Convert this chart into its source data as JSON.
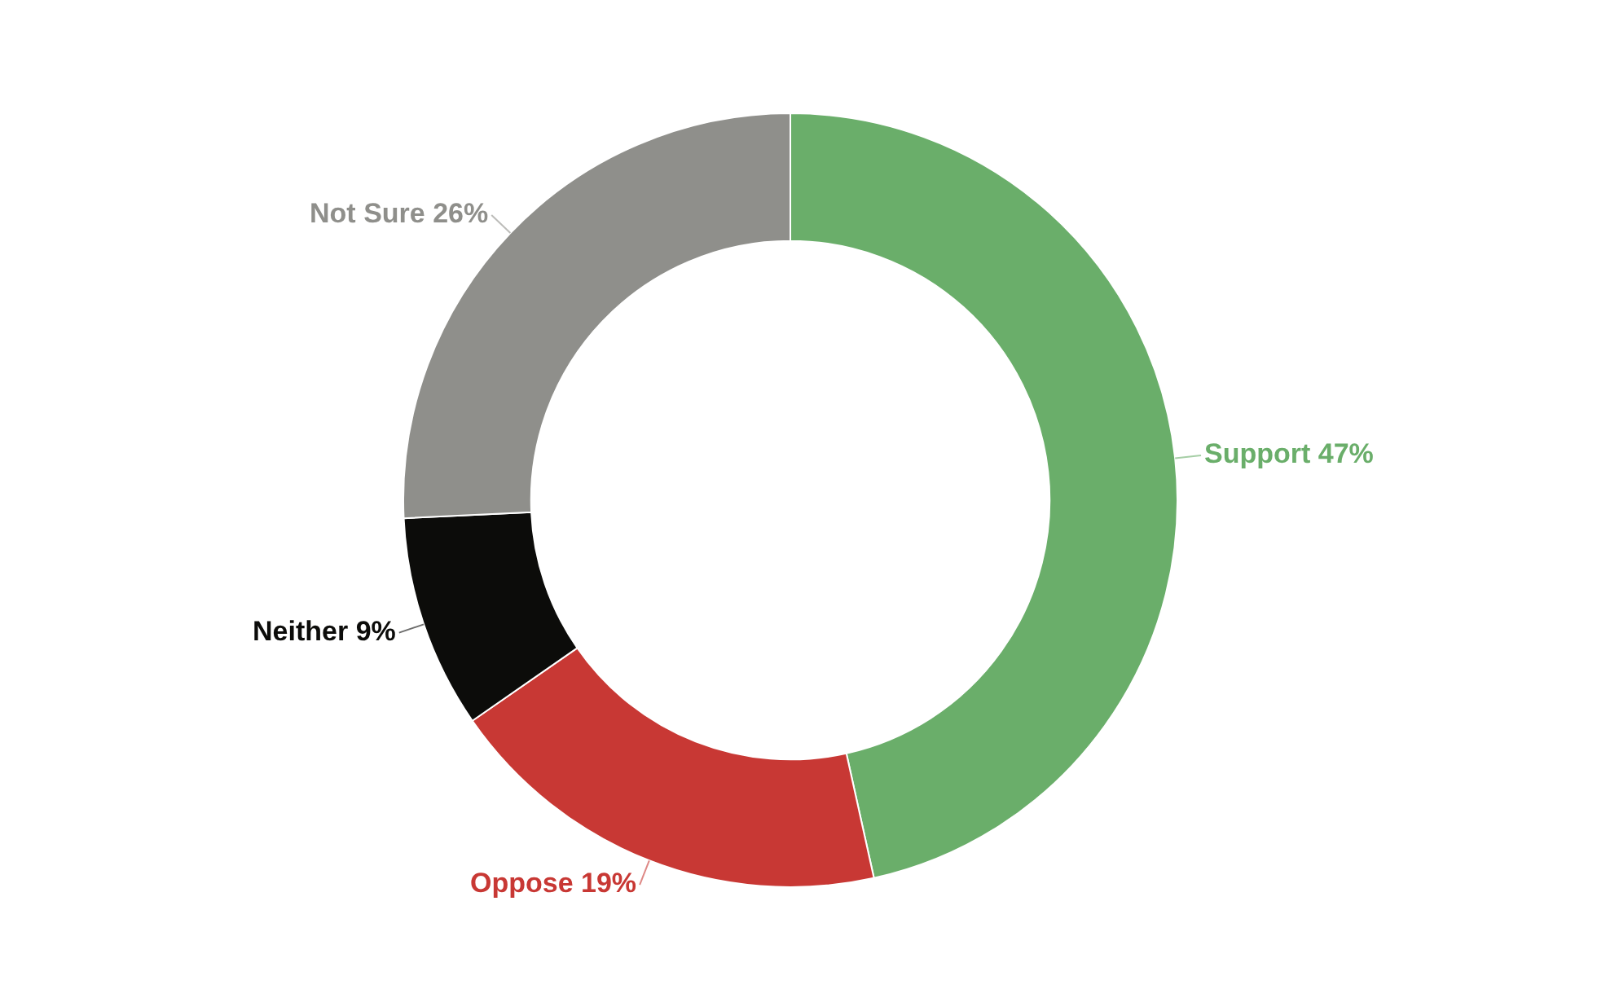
{
  "chart_data": {
    "type": "donut",
    "categories": [
      "Support",
      "Oppose",
      "Neither",
      "Not Sure"
    ],
    "values": [
      47,
      19,
      9,
      26
    ],
    "colors": [
      "#6aae6a",
      "#c83834",
      "#0c0c0a",
      "#8f8f8b"
    ],
    "value_labels": [
      "47%",
      "19%",
      "9%",
      "26%"
    ]
  }
}
